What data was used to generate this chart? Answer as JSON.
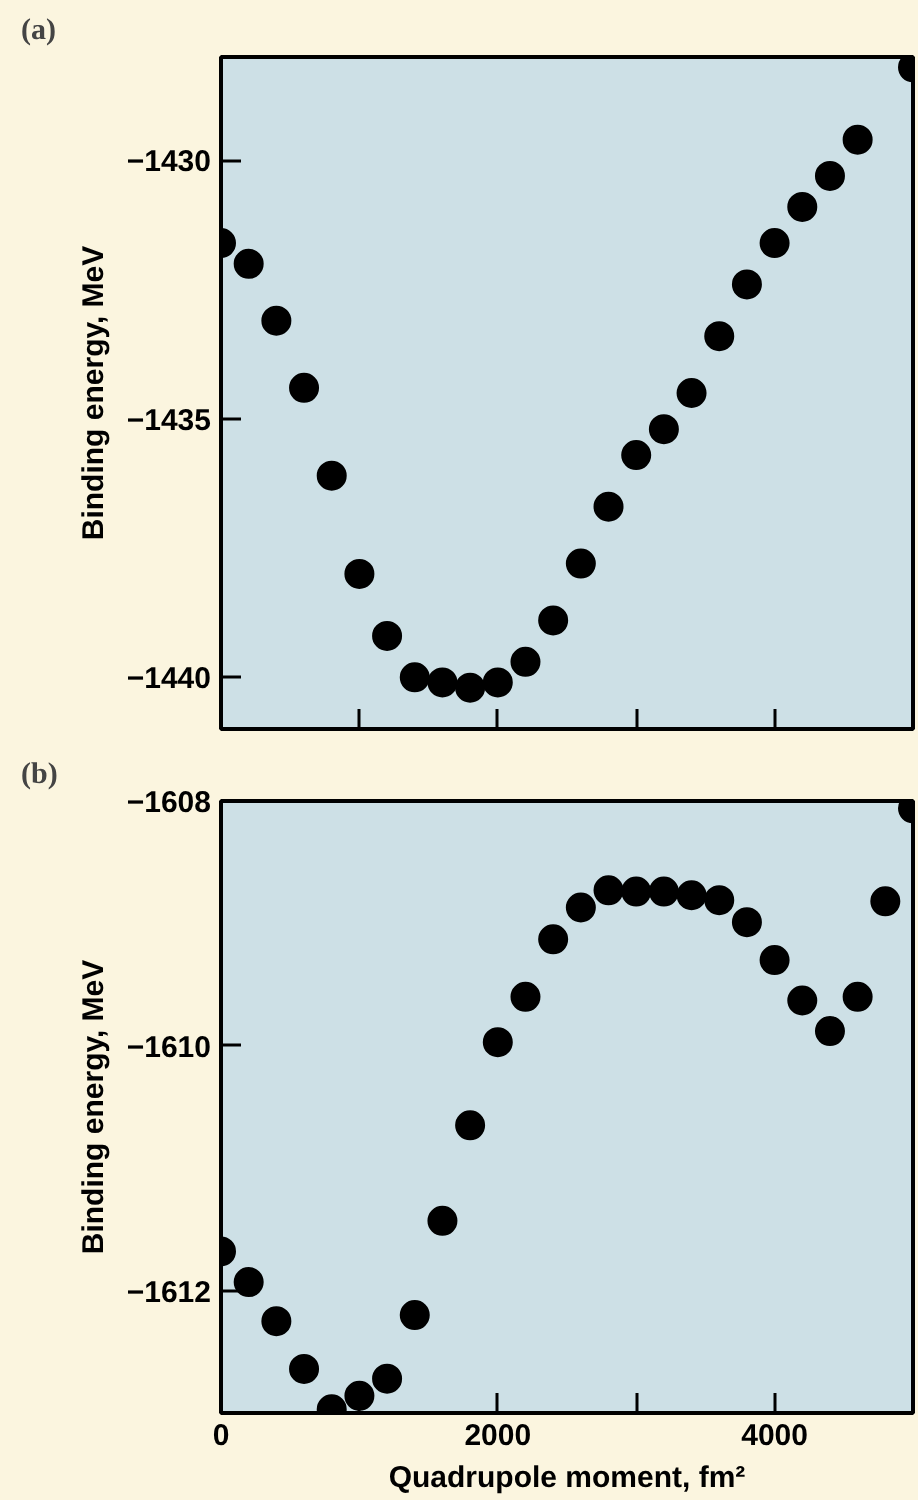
{
  "chart_data": [
    {
      "type": "scatter",
      "title": "(a)",
      "ylabel": "Binding energy, MeV",
      "marker": "circle",
      "tick_labels": "y",
      "x": [
        0,
        200,
        400,
        600,
        800,
        1000,
        1200,
        1400,
        1600,
        1800,
        2000,
        2200,
        2400,
        2600,
        2800,
        3000,
        3200,
        3400,
        3600,
        3800,
        4000,
        4200,
        4400,
        4600,
        5000
      ],
      "series": [
        {
          "color": "#000000",
          "values": [
            -1431.6,
            -1432.0,
            -1433.1,
            -1434.4,
            -1436.1,
            -1438.0,
            -1439.2,
            -1440.0,
            -1440.1,
            -1440.2,
            -1440.1,
            -1439.7,
            -1438.9,
            -1437.8,
            -1436.7,
            -1435.7,
            -1435.2,
            -1434.5,
            -1433.4,
            -1432.4,
            -1431.6,
            -1430.9,
            -1430.3,
            -1429.6,
            -1428.2
          ]
        }
      ],
      "xlim": [
        0,
        5000
      ],
      "ylim": [
        -1441,
        -1428
      ],
      "xticks": [
        {
          "value": 1000,
          "label": null
        },
        {
          "value": 2000,
          "label": null
        },
        {
          "value": 3000,
          "label": null
        },
        {
          "value": 4000,
          "label": null
        }
      ],
      "yticks": [
        -1440,
        -1435,
        -1430
      ]
    },
    {
      "type": "scatter",
      "title": "(b)",
      "xlabel": "Quadrupole moment, fm²",
      "ylabel": "Binding energy, MeV",
      "marker": "circle",
      "x": [
        0,
        200,
        400,
        600,
        800,
        1000,
        1200,
        1400,
        1600,
        1800,
        2000,
        2200,
        2400,
        2600,
        2800,
        3000,
        3200,
        3400,
        3600,
        3800,
        4000,
        4200,
        4400,
        4600,
        4800,
        5000
      ],
      "series": [
        {
          "color": "#000000",
          "values": [
            -1611.68,
            -1611.93,
            -1612.25,
            -1612.64,
            -1612.97,
            -1612.86,
            -1612.72,
            -1612.2,
            -1611.43,
            -1610.65,
            -1609.97,
            -1609.6,
            -1609.13,
            -1608.87,
            -1608.73,
            -1608.74,
            -1608.74,
            -1608.77,
            -1608.81,
            -1608.99,
            -1609.3,
            -1609.63,
            -1609.88,
            -1609.6,
            -1608.82,
            -1608.06
          ]
        }
      ],
      "xlim": [
        0,
        5000
      ],
      "ylim": [
        -1613,
        -1608
      ],
      "xticks": [
        0,
        {
          "value": 1000,
          "label": null
        },
        2000,
        {
          "value": 3000,
          "label": null
        },
        4000
      ],
      "yticks": [
        -1612,
        -1610,
        -1608
      ]
    }
  ]
}
